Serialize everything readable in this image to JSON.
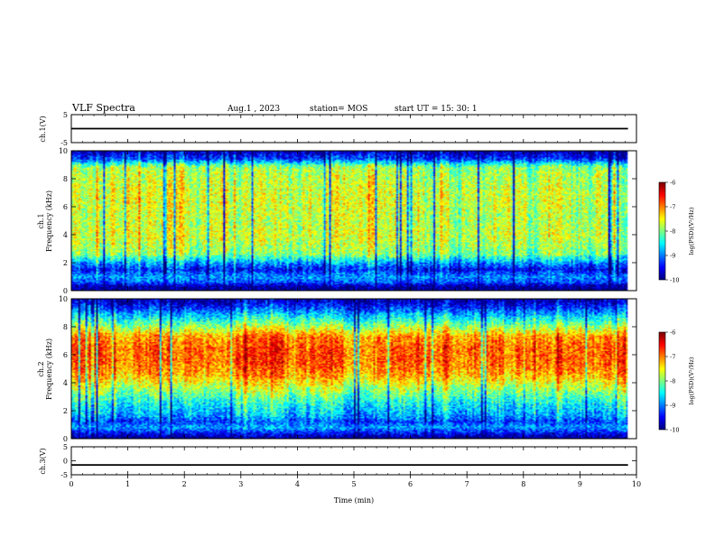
{
  "header": {
    "title": "VLF Spectra",
    "date": "Aug.1 , 2023",
    "station": "station= MOS",
    "start_ut": "start UT = 15: 30: 1"
  },
  "chart_data": [
    {
      "type": "line",
      "ylabel": "ch.1(V)",
      "ylim": [
        -5,
        5
      ],
      "yticks": [
        "5",
        "-5"
      ],
      "xlim": [
        0,
        10
      ],
      "series": [
        {
          "x": [
            0,
            9.85
          ],
          "values": [
            0,
            0
          ]
        }
      ]
    },
    {
      "type": "heatmap",
      "ylabel": "ch.1\nFrequency (kHz)",
      "ylabel_top": "ch.1",
      "ylabel_bottom": "Frequency (kHz)",
      "ylim": [
        0,
        10
      ],
      "yticks": [
        "10",
        "8",
        "6",
        "4",
        "2",
        "0"
      ],
      "xlim": [
        0,
        10
      ],
      "data_x_end": 9.85,
      "colorbar": {
        "label": "log(PSD)(V²/Hz)",
        "range": [
          -10,
          -6
        ],
        "ticks": [
          "-6",
          "-7",
          "-8",
          "-9",
          "-10"
        ]
      },
      "profile": [
        {
          "f": 0.0,
          "v": -10.0
        },
        {
          "f": 0.3,
          "v": -9.9
        },
        {
          "f": 0.6,
          "v": -9.2
        },
        {
          "f": 1.0,
          "v": -8.9
        },
        {
          "f": 1.5,
          "v": -9.5
        },
        {
          "f": 2.0,
          "v": -8.9
        },
        {
          "f": 2.6,
          "v": -8.0
        },
        {
          "f": 3.0,
          "v": -7.9
        },
        {
          "f": 4.0,
          "v": -7.7
        },
        {
          "f": 5.0,
          "v": -7.8
        },
        {
          "f": 6.0,
          "v": -7.7
        },
        {
          "f": 7.0,
          "v": -7.7
        },
        {
          "f": 8.0,
          "v": -7.8
        },
        {
          "f": 8.8,
          "v": -7.9
        },
        {
          "f": 9.0,
          "v": -8.3
        },
        {
          "f": 9.4,
          "v": -9.3
        },
        {
          "f": 10.0,
          "v": -9.9
        }
      ]
    },
    {
      "type": "heatmap",
      "ylabel": "ch.2\nFrequency (kHz)",
      "ylabel_top": "ch.2",
      "ylabel_bottom": "Frequency (kHz)",
      "ylim": [
        0,
        10
      ],
      "yticks": [
        "10",
        "8",
        "6",
        "4",
        "2",
        "0"
      ],
      "xlim": [
        0,
        10
      ],
      "data_x_end": 9.85,
      "colorbar": {
        "label": "log(PSD)(V²/Hz)",
        "range": [
          -10,
          -6
        ],
        "ticks": [
          "-6",
          "-7",
          "-8",
          "-9",
          "-10"
        ]
      },
      "profile": [
        {
          "f": 0.0,
          "v": -10.0
        },
        {
          "f": 0.3,
          "v": -9.6
        },
        {
          "f": 0.8,
          "v": -8.8
        },
        {
          "f": 1.2,
          "v": -9.2
        },
        {
          "f": 1.6,
          "v": -8.8
        },
        {
          "f": 2.5,
          "v": -8.4
        },
        {
          "f": 3.5,
          "v": -7.8
        },
        {
          "f": 4.5,
          "v": -7.1
        },
        {
          "f": 5.5,
          "v": -6.8
        },
        {
          "f": 6.5,
          "v": -6.8
        },
        {
          "f": 7.3,
          "v": -7.0
        },
        {
          "f": 8.0,
          "v": -7.8
        },
        {
          "f": 8.8,
          "v": -8.6
        },
        {
          "f": 9.5,
          "v": -9.4
        },
        {
          "f": 10.0,
          "v": -9.8
        }
      ]
    },
    {
      "type": "line",
      "ylabel": "ch.3(V)",
      "ylim": [
        -5,
        5
      ],
      "yticks": [
        "5",
        "0",
        "-5"
      ],
      "xlim": [
        0,
        10
      ],
      "xlabel": "Time (min)",
      "xticks": [
        "0",
        "1",
        "2",
        "3",
        "4",
        "5",
        "6",
        "7",
        "8",
        "9",
        "10"
      ],
      "series": [
        {
          "x": [
            0,
            9.85
          ],
          "values": [
            -1.5,
            -1.5
          ]
        }
      ]
    }
  ]
}
